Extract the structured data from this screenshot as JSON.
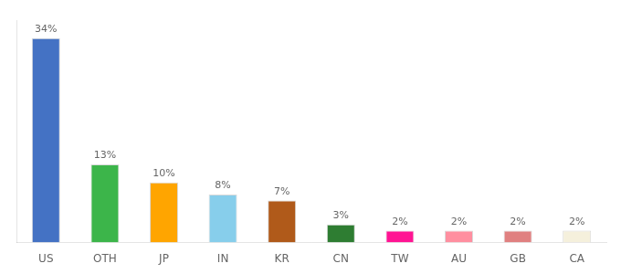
{
  "chart_data": {
    "type": "bar",
    "categories": [
      "US",
      "OTH",
      "JP",
      "IN",
      "KR",
      "CN",
      "TW",
      "AU",
      "GB",
      "CA"
    ],
    "values": [
      34,
      13,
      10,
      8,
      7,
      3,
      2,
      2,
      2,
      2
    ],
    "value_labels": [
      "34%",
      "13%",
      "10%",
      "8%",
      "7%",
      "3%",
      "2%",
      "2%",
      "2%",
      "2%"
    ],
    "colors": [
      "#4472c4",
      "#3cb54a",
      "#ffa500",
      "#87ceeb",
      "#b05a1a",
      "#2e7d32",
      "#ff1493",
      "#ff8fa0",
      "#e08080",
      "#f5f0dc"
    ],
    "ylim": [
      0,
      37
    ],
    "data_labels": true,
    "tick_labels": "x",
    "grid": false
  }
}
